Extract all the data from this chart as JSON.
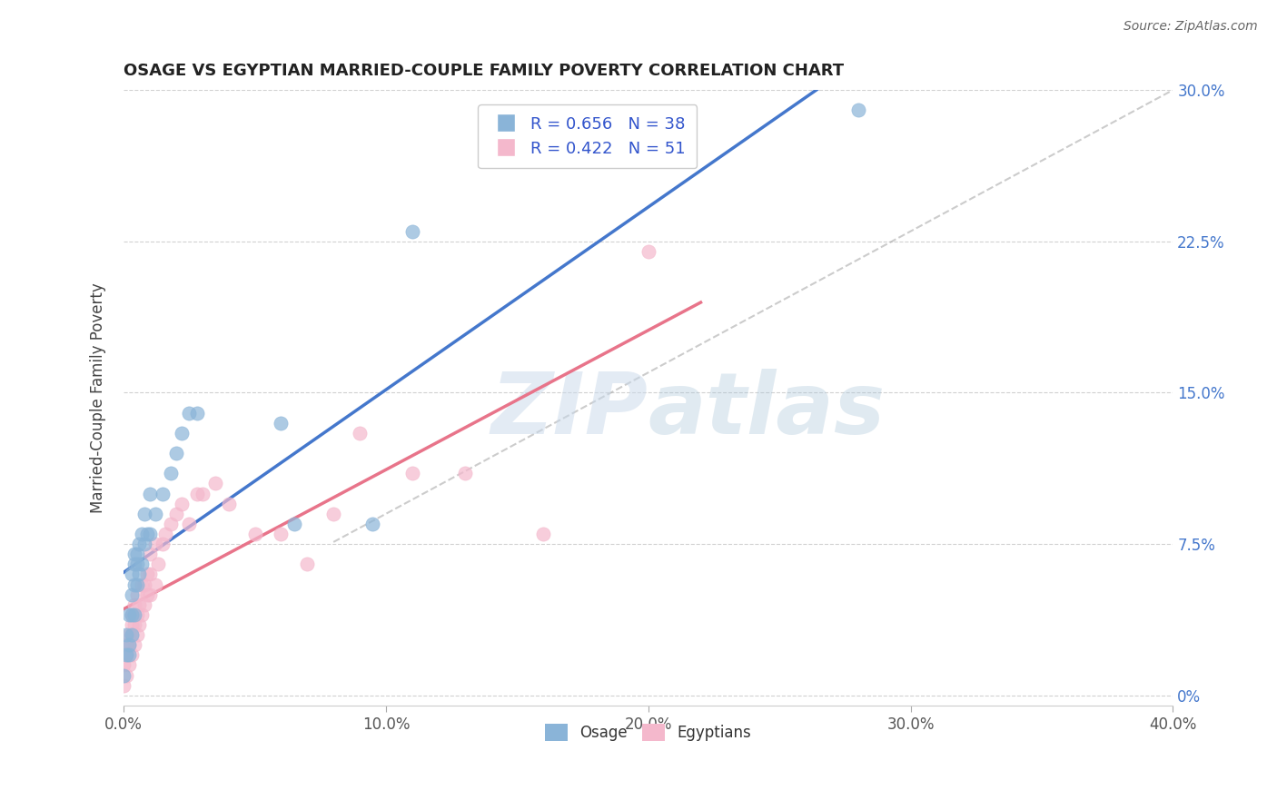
{
  "title": "OSAGE VS EGYPTIAN MARRIED-COUPLE FAMILY POVERTY CORRELATION CHART",
  "source": "Source: ZipAtlas.com",
  "xlabel": "",
  "ylabel": "Married-Couple Family Poverty",
  "xlim": [
    0.0,
    0.4
  ],
  "ylim": [
    -0.005,
    0.3
  ],
  "xticks": [
    0.0,
    0.1,
    0.2,
    0.3,
    0.4
  ],
  "xtick_labels": [
    "0.0%",
    "10.0%",
    "20.0%",
    "30.0%",
    "40.0%"
  ],
  "yticks": [
    0.0,
    0.075,
    0.15,
    0.225,
    0.3
  ],
  "ytick_labels": [
    "0%",
    "7.5%",
    "15.0%",
    "22.5%",
    "30.0%"
  ],
  "osage_R": 0.656,
  "osage_N": 38,
  "egyptian_R": 0.422,
  "egyptian_N": 51,
  "osage_color": "#8ab4d8",
  "egyptian_color": "#f4b8cc",
  "osage_line_color": "#4477cc",
  "egyptian_line_color": "#e8748a",
  "watermark_color": "#c8d8ea",
  "background_color": "#ffffff",
  "grid_color": "#cccccc",
  "osage_x": [
    0.0,
    0.001,
    0.001,
    0.002,
    0.002,
    0.002,
    0.003,
    0.003,
    0.003,
    0.003,
    0.004,
    0.004,
    0.004,
    0.004,
    0.005,
    0.005,
    0.005,
    0.006,
    0.006,
    0.007,
    0.007,
    0.008,
    0.008,
    0.009,
    0.01,
    0.01,
    0.012,
    0.015,
    0.018,
    0.02,
    0.022,
    0.025,
    0.028,
    0.06,
    0.065,
    0.095,
    0.11,
    0.28
  ],
  "osage_y": [
    0.01,
    0.02,
    0.03,
    0.02,
    0.025,
    0.04,
    0.03,
    0.04,
    0.05,
    0.06,
    0.04,
    0.055,
    0.065,
    0.07,
    0.055,
    0.065,
    0.07,
    0.06,
    0.075,
    0.065,
    0.08,
    0.075,
    0.09,
    0.08,
    0.08,
    0.1,
    0.09,
    0.1,
    0.11,
    0.12,
    0.13,
    0.14,
    0.14,
    0.135,
    0.085,
    0.085,
    0.23,
    0.29
  ],
  "egyptian_x": [
    0.0,
    0.0,
    0.001,
    0.001,
    0.001,
    0.002,
    0.002,
    0.002,
    0.003,
    0.003,
    0.003,
    0.003,
    0.004,
    0.004,
    0.004,
    0.005,
    0.005,
    0.005,
    0.006,
    0.006,
    0.007,
    0.007,
    0.008,
    0.008,
    0.009,
    0.009,
    0.01,
    0.01,
    0.01,
    0.012,
    0.012,
    0.013,
    0.015,
    0.016,
    0.018,
    0.02,
    0.022,
    0.025,
    0.028,
    0.03,
    0.035,
    0.04,
    0.05,
    0.06,
    0.07,
    0.08,
    0.09,
    0.11,
    0.13,
    0.16,
    0.2
  ],
  "egyptian_y": [
    0.005,
    0.015,
    0.01,
    0.02,
    0.025,
    0.015,
    0.025,
    0.03,
    0.02,
    0.03,
    0.035,
    0.04,
    0.025,
    0.035,
    0.045,
    0.03,
    0.04,
    0.05,
    0.035,
    0.045,
    0.04,
    0.055,
    0.045,
    0.055,
    0.05,
    0.06,
    0.05,
    0.06,
    0.07,
    0.055,
    0.075,
    0.065,
    0.075,
    0.08,
    0.085,
    0.09,
    0.095,
    0.085,
    0.1,
    0.1,
    0.105,
    0.095,
    0.08,
    0.08,
    0.065,
    0.09,
    0.13,
    0.11,
    0.11,
    0.08,
    0.22
  ]
}
